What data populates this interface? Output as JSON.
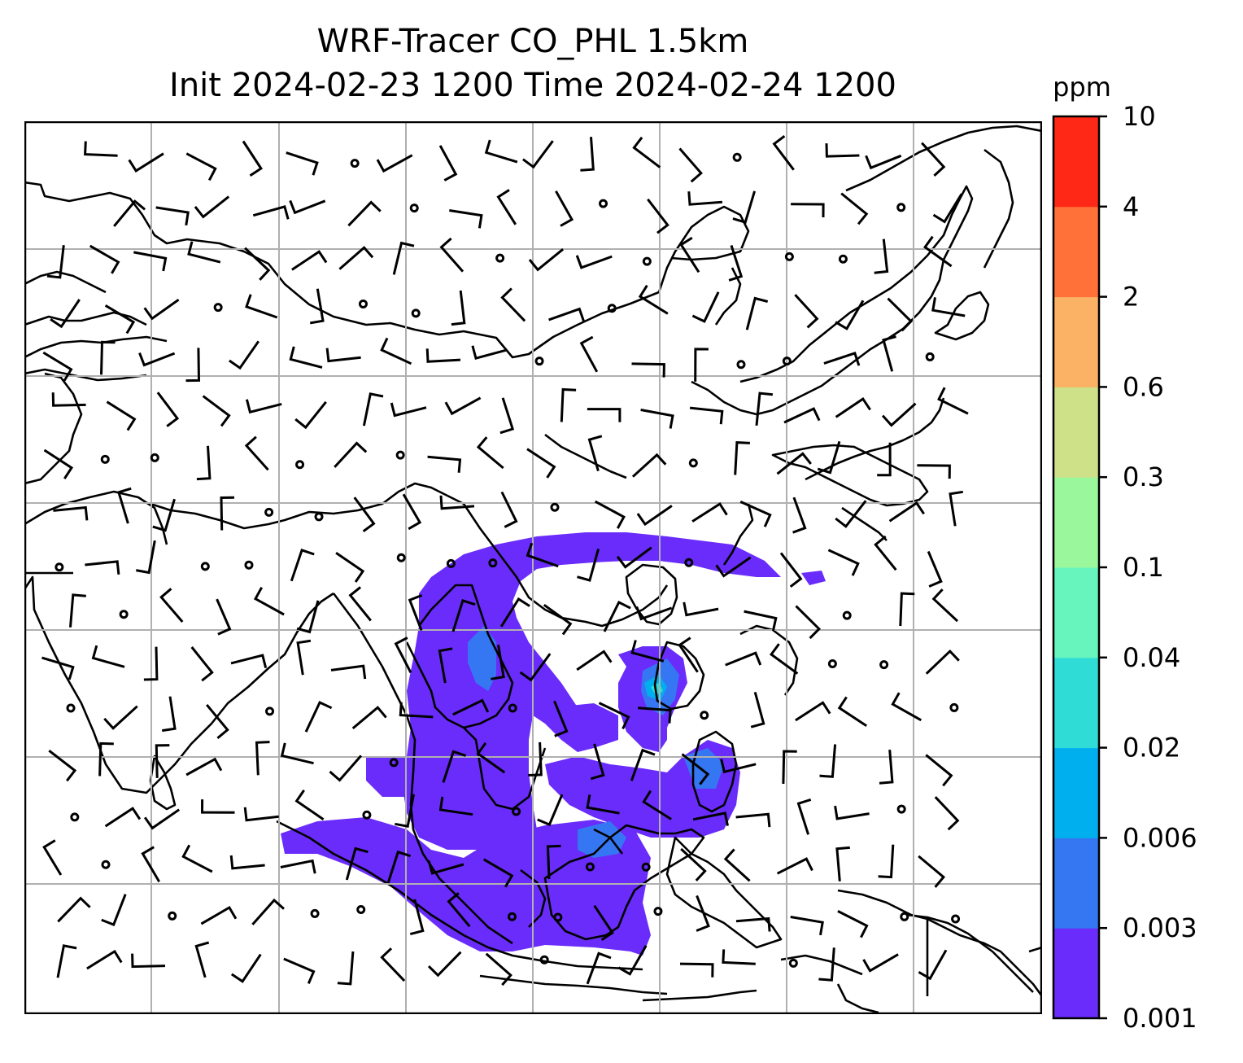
{
  "title_line1": "WRF-Tracer CO_PHL 1.5km",
  "title_line2": "Init 2024-02-23 1200 Time 2024-02-24 1200",
  "colorbar": {
    "unit": "ppm",
    "levels": [
      "0.001",
      "0.003",
      "0.006",
      "0.02",
      "0.04",
      "0.1",
      "0.3",
      "0.6",
      "2",
      "4",
      "10"
    ],
    "colors": [
      "#6a2cfb",
      "#3577f2",
      "#00b0ee",
      "#2fddd6",
      "#67f5bd",
      "#9af79c",
      "#cfe188",
      "#fbb264",
      "#ff7139",
      "#ff2817"
    ]
  },
  "map": {
    "coastline_color": "#000000",
    "gridline_color": "#b0b0b0",
    "plume_colors": {
      "low": "#6a2cfb",
      "mid": "#3577f2",
      "high": "#00b0ee",
      "peak": "#2fddd6"
    }
  }
}
